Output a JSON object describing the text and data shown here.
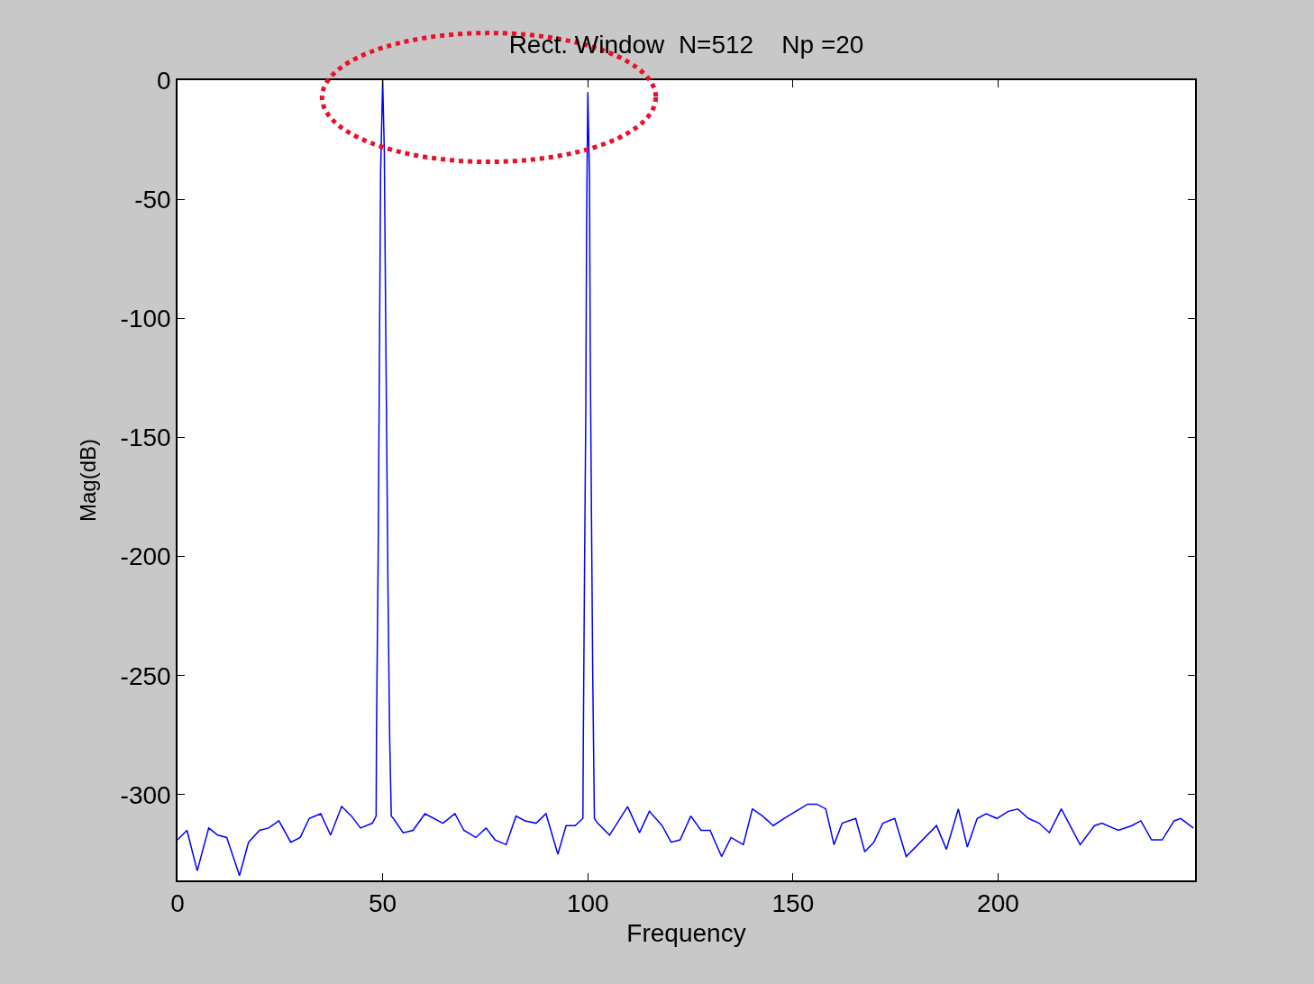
{
  "chart_data": {
    "type": "line",
    "title": "Rect. Window  N=512    Np =20",
    "xlabel": "Frequency",
    "ylabel": "Mag(dB)",
    "x": [
      0,
      2.3,
      4.8,
      7.6,
      9.8,
      12,
      15.1,
      17.3,
      20,
      22.2,
      24.7,
      27.6,
      29.9,
      32.1,
      34.9,
      37.3,
      40,
      42.4,
      44.6,
      47.5,
      48.4,
      48.5,
      48.9,
      49.2,
      49.5,
      50,
      50.4,
      50.7,
      51,
      51.3,
      51.7,
      52.1,
      52.6,
      55,
      57.4,
      60.3,
      64.7,
      67.6,
      69.8,
      72.7,
      75.2,
      77.4,
      80.1,
      82.5,
      84.7,
      87.4,
      89.8,
      92.7,
      94.7,
      96.9,
      98.8,
      98.9,
      99.2,
      99.5,
      99.7,
      100,
      100.4,
      100.6,
      100.9,
      101.2,
      101.6,
      102.4,
      105.3,
      109.7,
      112.6,
      115,
      118.1,
      120.3,
      122.5,
      125.1,
      127.6,
      129.8,
      132.6,
      134.9,
      137.9,
      140.1,
      142.6,
      145.2,
      147.8,
      150.7,
      153.6,
      155.8,
      158,
      160,
      162,
      165.3,
      167.5,
      169.7,
      171.9,
      174.8,
      177.6,
      185,
      187.4,
      190.3,
      192.5,
      194.9,
      197.1,
      199.7,
      202.5,
      204.8,
      207.4,
      210,
      212.5,
      215.4,
      220,
      223.5,
      225.3,
      229.3,
      232.6,
      234.8,
      237.4,
      240,
      242.9,
      244.5,
      247.6
    ],
    "series": [
      {
        "color": "#0000ff",
        "values": [
          -319,
          -315,
          -332,
          -314,
          -317,
          -318,
          -334,
          -320,
          -315,
          -314,
          -311,
          -320,
          -318,
          -310,
          -308,
          -317,
          -305,
          -309,
          -314,
          -312,
          -309,
          -272,
          -200,
          -118,
          -38,
          0,
          -30,
          -95,
          -155,
          -215,
          -276,
          -309,
          -310,
          -316,
          -315,
          -308,
          -312,
          -308,
          -315,
          -318,
          -314,
          -319,
          -321,
          -309,
          -311,
          -312,
          -308,
          -325,
          -313,
          -313,
          -310,
          -278,
          -205,
          -140,
          -60,
          -5,
          -40,
          -115,
          -185,
          -250,
          -310,
          -312,
          -317,
          -305,
          -316,
          -307,
          -313,
          -320,
          -319,
          -309,
          -315,
          -315,
          -326,
          -318,
          -321,
          -306,
          -309,
          -313,
          -310,
          -307,
          -304,
          -304,
          -306,
          -321,
          -312,
          -310,
          -324,
          -320,
          -312,
          -310,
          -326,
          -313,
          -323,
          -306,
          -322,
          -310,
          -308,
          -310,
          -307,
          -306,
          -310,
          -312,
          -316,
          -306,
          -321,
          -313,
          -312,
          -315,
          -313,
          -311,
          -319,
          -319,
          -311,
          -310,
          -314
        ]
      }
    ],
    "xlim": [
      0,
      248
    ],
    "ylim": [
      -336,
      0
    ],
    "xticks": [
      0,
      50,
      100,
      150,
      200
    ],
    "yticks": [
      0,
      -50,
      -100,
      -150,
      -200,
      -250,
      -300
    ],
    "marker": "none",
    "line_style": "solid"
  }
}
